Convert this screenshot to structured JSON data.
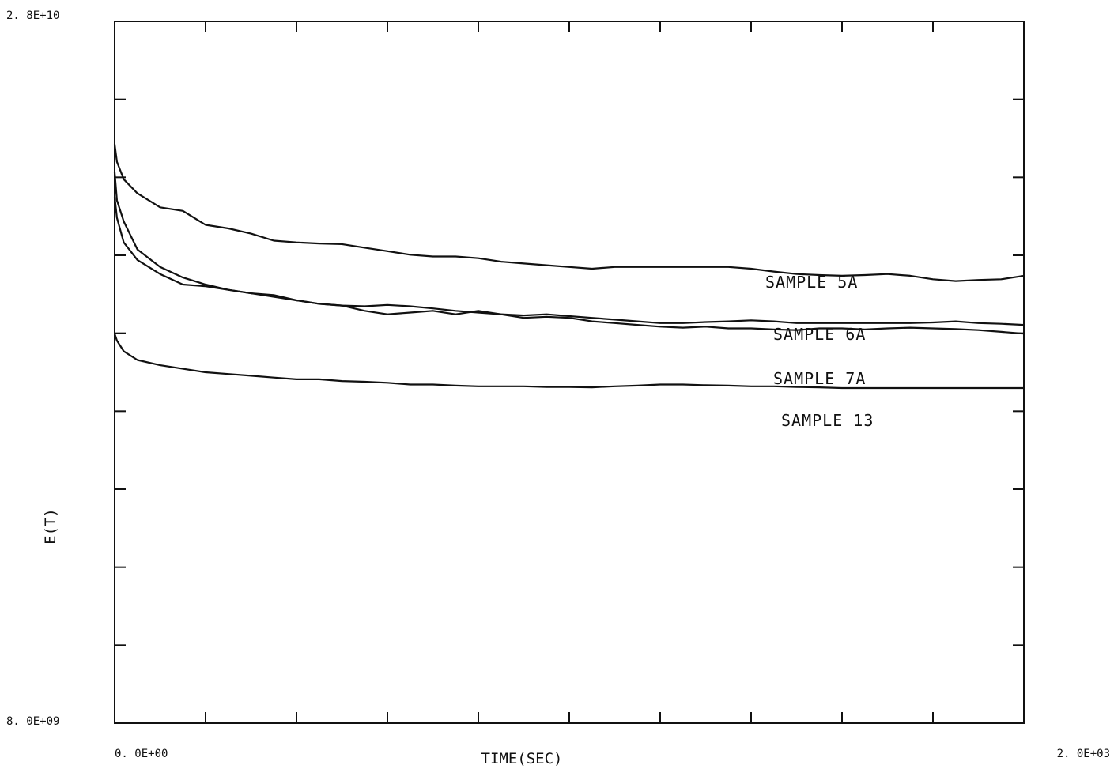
{
  "chart_data": {
    "type": "line",
    "xlabel": "TIME(SEC)",
    "ylabel": "E(T)",
    "xlim": [
      0,
      2000
    ],
    "ylim": [
      8000000000,
      28000000000
    ],
    "x_tick_labels": {
      "min": "0. 0E+00",
      "max": "2. 0E+03"
    },
    "y_tick_labels": {
      "min": "8. 0E+09",
      "max": "2. 8E+10"
    },
    "x_major_ticks": 10,
    "y_major_ticks": 9,
    "grid": false,
    "series": [
      {
        "name": "SAMPLE 5A",
        "x": [
          0,
          5,
          20,
          50,
          100,
          150,
          200,
          250,
          300,
          350,
          400,
          450,
          500,
          550,
          600,
          650,
          700,
          750,
          800,
          850,
          900,
          950,
          1000,
          1050,
          1100,
          1150,
          1200,
          1250,
          1300,
          1350,
          1400,
          1450,
          1500,
          1550,
          1600,
          1650,
          1700,
          1750,
          1800,
          1850,
          1900,
          1950,
          2000
        ],
        "values": [
          24500000000.0,
          24000000000.0,
          23500000000.0,
          23100000000.0,
          22700000000.0,
          22600000000.0,
          22200000000.0,
          22100000000.0,
          21950000000.0,
          21750000000.0,
          21700000000.0,
          21670000000.0,
          21650000000.0,
          21550000000.0,
          21450000000.0,
          21350000000.0,
          21300000000.0,
          21300000000.0,
          21250000000.0,
          21150000000.0,
          21100000000.0,
          21050000000.0,
          21000000000.0,
          20950000000.0,
          21000000000.0,
          21000000000.0,
          21000000000.0,
          21000000000.0,
          21000000000.0,
          21000000000.0,
          20950000000.0,
          20870000000.0,
          20800000000.0,
          20770000000.0,
          20750000000.0,
          20770000000.0,
          20800000000.0,
          20750000000.0,
          20650000000.0,
          20600000000.0,
          20630000000.0,
          20650000000.0,
          20750000000.0
        ]
      },
      {
        "name": "SAMPLE 6A",
        "x": [
          0,
          5,
          20,
          50,
          100,
          150,
          200,
          250,
          300,
          350,
          400,
          450,
          500,
          550,
          600,
          650,
          700,
          750,
          800,
          850,
          900,
          950,
          1000,
          1050,
          1100,
          1150,
          1200,
          1250,
          1300,
          1350,
          1400,
          1450,
          1500,
          1550,
          1600,
          1650,
          1700,
          1750,
          1800,
          1850,
          1900,
          1950,
          2000
        ],
        "values": [
          23700000000.0,
          22900000000.0,
          22300000000.0,
          21500000000.0,
          21000000000.0,
          20700000000.0,
          20500000000.0,
          20350000000.0,
          20250000000.0,
          20200000000.0,
          20050000000.0,
          19950000000.0,
          19900000000.0,
          19880000000.0,
          19920000000.0,
          19880000000.0,
          19820000000.0,
          19750000000.0,
          19700000000.0,
          19650000000.0,
          19620000000.0,
          19650000000.0,
          19600000000.0,
          19550000000.0,
          19500000000.0,
          19450000000.0,
          19400000000.0,
          19400000000.0,
          19430000000.0,
          19450000000.0,
          19480000000.0,
          19450000000.0,
          19400000000.0,
          19400000000.0,
          19400000000.0,
          19400000000.0,
          19400000000.0,
          19400000000.0,
          19420000000.0,
          19450000000.0,
          19400000000.0,
          19380000000.0,
          19350000000.0
        ]
      },
      {
        "name": "SAMPLE 7A",
        "x": [
          0,
          5,
          20,
          50,
          100,
          150,
          200,
          250,
          300,
          350,
          400,
          450,
          500,
          550,
          600,
          650,
          700,
          750,
          800,
          850,
          900,
          950,
          1000,
          1050,
          1100,
          1150,
          1200,
          1250,
          1300,
          1350,
          1400,
          1450,
          1500,
          1550,
          1600,
          1650,
          1700,
          1750,
          1800,
          1850,
          1900,
          1950,
          2000
        ],
        "values": [
          23000000000.0,
          22400000000.0,
          21700000000.0,
          21200000000.0,
          20800000000.0,
          20500000000.0,
          20450000000.0,
          20350000000.0,
          20250000000.0,
          20150000000.0,
          20050000000.0,
          19950000000.0,
          19900000000.0,
          19750000000.0,
          19650000000.0,
          19700000000.0,
          19750000000.0,
          19650000000.0,
          19750000000.0,
          19650000000.0,
          19550000000.0,
          19580000000.0,
          19550000000.0,
          19450000000.0,
          19400000000.0,
          19350000000.0,
          19300000000.0,
          19270000000.0,
          19300000000.0,
          19250000000.0,
          19250000000.0,
          19220000000.0,
          19200000000.0,
          19250000000.0,
          19250000000.0,
          19220000000.0,
          19250000000.0,
          19270000000.0,
          19250000000.0,
          19230000000.0,
          19200000000.0,
          19150000000.0,
          19100000000.0
        ]
      },
      {
        "name": "SAMPLE 13",
        "x": [
          0,
          5,
          20,
          50,
          100,
          150,
          200,
          250,
          300,
          350,
          400,
          450,
          500,
          550,
          600,
          650,
          700,
          750,
          800,
          850,
          900,
          950,
          1000,
          1050,
          1100,
          1150,
          1200,
          1250,
          1300,
          1350,
          1400,
          1450,
          1500,
          1550,
          1600,
          1650,
          1700,
          1750,
          1800,
          1850,
          1900,
          1950,
          2000
        ],
        "values": [
          19100000000.0,
          18900000000.0,
          18600000000.0,
          18350000000.0,
          18200000000.0,
          18100000000.0,
          18000000000.0,
          17950000000.0,
          17900000000.0,
          17850000000.0,
          17800000000.0,
          17800000000.0,
          17750000000.0,
          17730000000.0,
          17700000000.0,
          17650000000.0,
          17650000000.0,
          17620000000.0,
          17600000000.0,
          17600000000.0,
          17600000000.0,
          17580000000.0,
          17580000000.0,
          17570000000.0,
          17600000000.0,
          17620000000.0,
          17650000000.0,
          17650000000.0,
          17630000000.0,
          17620000000.0,
          17600000000.0,
          17600000000.0,
          17580000000.0,
          17570000000.0,
          17550000000.0,
          17550000000.0,
          17550000000.0,
          17550000000.0,
          17550000000.0,
          17550000000.0,
          17550000000.0,
          17550000000.0,
          17550000000.0
        ]
      }
    ]
  }
}
